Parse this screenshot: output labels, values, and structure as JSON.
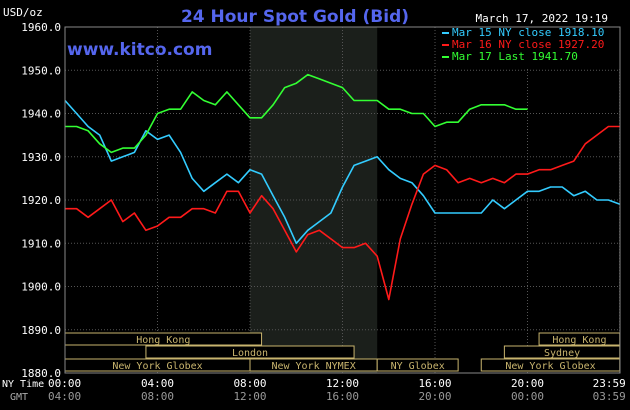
{
  "chart_data": {
    "type": "line",
    "title": "24 Hour Spot Gold (Bid)",
    "timestamp": "March 17, 2022 19:19",
    "ylabel": "USD/oz",
    "website": "www.kitco.com",
    "ylim": [
      1880,
      1960
    ],
    "yticks": [
      "1960.0",
      "1950.0",
      "1940.0",
      "1930.0",
      "1920.0",
      "1910.0",
      "1900.0",
      "1890.0",
      "1880.0"
    ],
    "grid": true,
    "legend_position": "top-right",
    "x_axis": {
      "ny_label": "NY Time",
      "gmt_label": "GMT",
      "ny_ticks": [
        "00:00",
        "04:00",
        "08:00",
        "12:00",
        "16:00",
        "20:00",
        "23:59"
      ],
      "gmt_ticks": [
        "04:00",
        "08:00",
        "12:00",
        "16:00",
        "20:00",
        "00:00",
        "03:59"
      ]
    },
    "sessions": [
      {
        "name": "Hong Kong",
        "row": 0,
        "start": 0.0,
        "end": 8.5
      },
      {
        "name": "London",
        "row": 1,
        "start": 3.5,
        "end": 12.5
      },
      {
        "name": "New York Globex",
        "row": 2,
        "start": 0.0,
        "end": 8.0
      },
      {
        "name": "New York NYMEX",
        "row": 2,
        "start": 8.0,
        "end": 13.5
      },
      {
        "name": "NY Globex",
        "row": 2,
        "start": 13.5,
        "end": 17.0
      },
      {
        "name": "Hong Kong",
        "row": 0,
        "start": 20.5,
        "end": 23.99
      },
      {
        "name": "Sydney",
        "row": 1,
        "start": 19.0,
        "end": 23.99
      },
      {
        "name": "New York Globex",
        "row": 2,
        "start": 18.0,
        "end": 23.99
      }
    ],
    "shaded_period": [
      8.0,
      13.5
    ],
    "series": [
      {
        "name": "Mar 15 NY close 1918.10",
        "color": "#33ccff",
        "x": [
          0,
          0.5,
          1,
          1.5,
          2,
          2.5,
          3,
          3.5,
          4,
          4.5,
          5,
          5.5,
          6,
          6.5,
          7,
          7.5,
          8,
          8.5,
          9,
          9.5,
          10,
          10.5,
          11,
          11.5,
          12,
          12.5,
          13,
          13.5,
          14,
          14.5,
          15,
          15.5,
          16,
          16.5,
          17,
          17.5,
          18,
          18.5,
          19,
          19.5,
          20,
          20.5,
          21,
          21.5,
          22,
          22.5,
          23,
          23.5,
          24
        ],
        "values": [
          1943,
          1940,
          1937,
          1935,
          1929,
          1930,
          1931,
          1936,
          1934,
          1935,
          1931,
          1925,
          1922,
          1924,
          1926,
          1924,
          1927,
          1926,
          1921,
          1916,
          1910,
          1913,
          1915,
          1917,
          1923,
          1928,
          1929,
          1930,
          1927,
          1925,
          1924,
          1921,
          1917,
          1917,
          1917,
          1917,
          1917,
          1920,
          1918,
          1920,
          1922,
          1922,
          1923,
          1923,
          1921,
          1922,
          1920,
          1920,
          1919
        ]
      },
      {
        "name": "Mar 16 NY close 1927.20",
        "color": "#ff1a1a",
        "x": [
          0,
          0.5,
          1,
          1.5,
          2,
          2.5,
          3,
          3.5,
          4,
          4.5,
          5,
          5.5,
          6,
          6.5,
          7,
          7.5,
          8,
          8.5,
          9,
          9.5,
          10,
          10.5,
          11,
          11.5,
          12,
          12.5,
          13,
          13.5,
          14,
          14.5,
          15,
          15.5,
          16,
          16.5,
          17,
          17.5,
          18,
          18.5,
          19,
          19.5,
          20,
          20.5,
          21,
          21.5,
          22,
          22.5,
          23,
          23.5,
          24
        ],
        "values": [
          1918,
          1918,
          1916,
          1918,
          1920,
          1915,
          1917,
          1913,
          1914,
          1916,
          1916,
          1918,
          1918,
          1917,
          1922,
          1922,
          1917,
          1921,
          1918,
          1913,
          1908,
          1912,
          1913,
          1911,
          1909,
          1909,
          1910,
          1907,
          1897,
          1911,
          1919,
          1926,
          1928,
          1927,
          1924,
          1925,
          1924,
          1925,
          1924,
          1926,
          1926,
          1927,
          1927,
          1928,
          1929,
          1933,
          1935,
          1937,
          1937
        ]
      },
      {
        "name": "Mar 17 Last 1941.70",
        "color": "#33ff33",
        "x": [
          0,
          0.5,
          1,
          1.5,
          2,
          2.5,
          3,
          3.5,
          4,
          4.5,
          5,
          5.5,
          6,
          6.5,
          7,
          7.5,
          8,
          8.5,
          9,
          9.5,
          10,
          10.5,
          11,
          11.5,
          12,
          12.5,
          13,
          13.5,
          14,
          14.5,
          15,
          15.5,
          16,
          16.5,
          17,
          17.5,
          18,
          18.5,
          19,
          19.5,
          20
        ],
        "values": [
          1937,
          1937,
          1936,
          1933,
          1931,
          1932,
          1932,
          1935,
          1940,
          1941,
          1941,
          1945,
          1943,
          1942,
          1945,
          1942,
          1939,
          1939,
          1942,
          1946,
          1947,
          1949,
          1948,
          1947,
          1946,
          1943,
          1943,
          1943,
          1941,
          1941,
          1940,
          1940,
          1937,
          1938,
          1938,
          1941,
          1942,
          1942,
          1942,
          1941,
          1941
        ]
      }
    ]
  }
}
